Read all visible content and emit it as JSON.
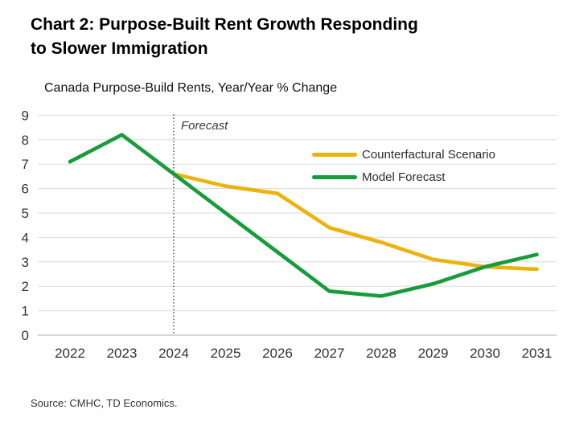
{
  "page": {
    "title_line1": "Chart 2: Purpose-Built Rent Growth Responding",
    "title_line2": "to Slower Immigration",
    "subtitle": "Canada Purpose-Build Rents, Year/Year % Change",
    "source": "Source: CMHC, TD Economics."
  },
  "colors": {
    "counterfactural_line": "#EBB30B",
    "model_forecast_line": "#189B3B",
    "gridline": "#DCDCDC",
    "zero_axis_line": "#ADADAD",
    "axis_text": "#333333",
    "forecast_divider": "#333333"
  },
  "chart_data": {
    "type": "line",
    "title": "Chart 2: Purpose-Built Rent Growth Responding to Slower Immigration",
    "subtitle": "Canada Purpose-Build Rents, Year/Year % Change",
    "categories": [
      "2022",
      "2023",
      "2024",
      "2025",
      "2026",
      "2027",
      "2028",
      "2029",
      "2030",
      "2031"
    ],
    "series": [
      {
        "name": "Counterfactural Scenario",
        "color": "#EBB30B",
        "values": [
          null,
          null,
          6.6,
          6.1,
          5.8,
          4.4,
          3.8,
          3.1,
          2.8,
          2.7
        ]
      },
      {
        "name": "Model Forecast",
        "color": "#189B3B",
        "values": [
          7.1,
          8.2,
          6.6,
          5.0,
          3.4,
          1.8,
          1.6,
          2.1,
          2.8,
          3.3
        ]
      }
    ],
    "xlabel": "",
    "ylabel": "",
    "ylim": [
      0,
      9
    ],
    "ytick_step": 1,
    "grid": "horizontal",
    "legend_position": "inside-top-right",
    "forecast": {
      "at_category": "2024",
      "label": "Forecast"
    },
    "source": "Source: CMHC, TD Economics."
  }
}
